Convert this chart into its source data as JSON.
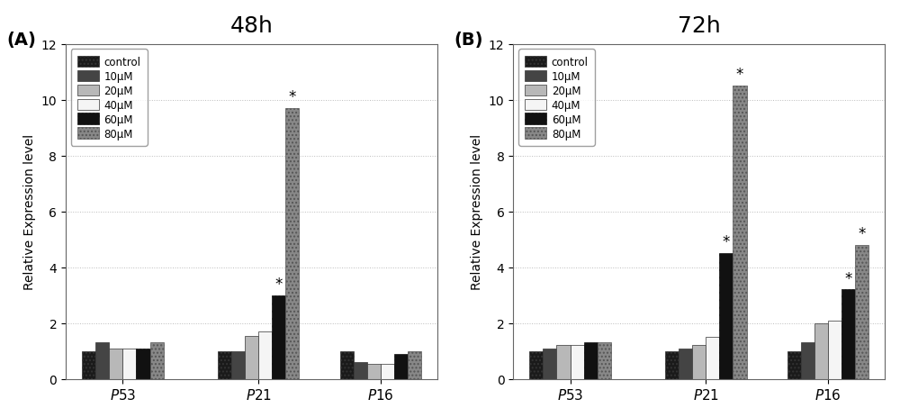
{
  "panel_A": {
    "title": "48h",
    "groups": [
      "P53",
      "P21",
      "P16"
    ],
    "series_labels": [
      "control",
      "10μM",
      "20μM",
      "40μM",
      "60μM",
      "80μM"
    ],
    "values": {
      "P53": [
        1.0,
        1.3,
        1.1,
        1.1,
        1.1,
        1.3
      ],
      "P21": [
        1.0,
        1.0,
        1.55,
        1.7,
        3.0,
        9.7
      ],
      "P16": [
        1.0,
        0.6,
        0.55,
        0.55,
        0.9,
        1.0
      ]
    },
    "stars": [
      {
        "group_idx": 1,
        "series_idx": 4,
        "value": 3.0
      },
      {
        "group_idx": 1,
        "series_idx": 5,
        "value": 9.7
      }
    ],
    "ylabel": "Relative Expression level",
    "ylim": [
      0,
      12
    ],
    "panel_label": "(A)"
  },
  "panel_B": {
    "title": "72h",
    "groups": [
      "P53",
      "P21",
      "P16"
    ],
    "series_labels": [
      "control",
      "10μM",
      "20μM",
      "40μM",
      "60μM",
      "80μM"
    ],
    "values": {
      "P53": [
        1.0,
        1.1,
        1.2,
        1.2,
        1.3,
        1.3
      ],
      "P21": [
        1.0,
        1.1,
        1.2,
        1.5,
        4.5,
        10.5
      ],
      "P16": [
        1.0,
        1.3,
        2.0,
        2.1,
        3.2,
        4.8
      ]
    },
    "stars": [
      {
        "group_idx": 1,
        "series_idx": 4,
        "value": 4.5
      },
      {
        "group_idx": 1,
        "series_idx": 5,
        "value": 10.5
      },
      {
        "group_idx": 2,
        "series_idx": 4,
        "value": 3.2
      },
      {
        "group_idx": 2,
        "series_idx": 5,
        "value": 4.8
      }
    ],
    "ylabel": "Relative Expression level",
    "ylim": [
      0,
      12
    ],
    "panel_label": "(B)"
  },
  "bar_styles": [
    {
      "color": "#1a1a1a",
      "hatch": "....",
      "edgecolor": "#333333"
    },
    {
      "color": "#444444",
      "hatch": "",
      "edgecolor": "#333333"
    },
    {
      "color": "#b8b8b8",
      "hatch": "",
      "edgecolor": "#333333"
    },
    {
      "color": "#f5f5f5",
      "hatch": "",
      "edgecolor": "#333333"
    },
    {
      "color": "#111111",
      "hatch": "....",
      "edgecolor": "#111111"
    },
    {
      "color": "#888888",
      "hatch": "....",
      "edgecolor": "#555555"
    }
  ],
  "figure_bg": "#ffffff",
  "plot_bg": "#ffffff",
  "grid_color": "#aaaaaa",
  "bar_width": 0.1,
  "group_positions": [
    0.0,
    1.0,
    1.9
  ]
}
